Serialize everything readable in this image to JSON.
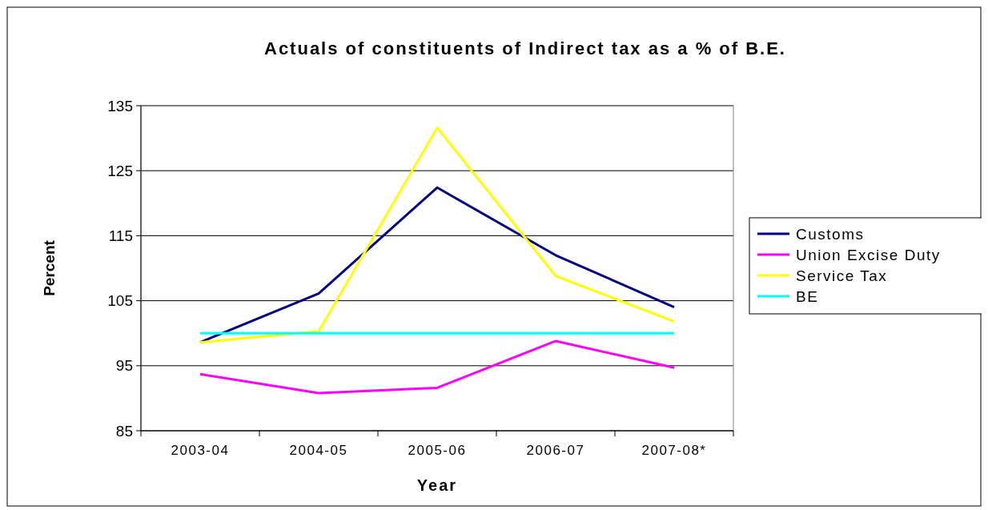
{
  "chart_data": {
    "type": "line",
    "title": "Actuals of constituents of Indirect tax as a % of B.E.",
    "xlabel": "Year",
    "ylabel": "Percent",
    "categories": [
      "2003-04",
      "2004-05",
      "2005-06",
      "2006-07",
      "2007-08*"
    ],
    "series": [
      {
        "name": "Customs",
        "color": "#000080",
        "values": [
          98.6,
          106.1,
          122.4,
          112.0,
          104.0
        ]
      },
      {
        "name": "Union Excise Duty",
        "color": "#ff00ff",
        "values": [
          93.7,
          90.8,
          91.6,
          98.8,
          94.7
        ]
      },
      {
        "name": "Service Tax",
        "color": "#ffff00",
        "values": [
          98.6,
          100.3,
          131.6,
          108.8,
          101.8
        ]
      },
      {
        "name": "BE",
        "color": "#00ffff",
        "values": [
          100,
          100,
          100,
          100,
          100
        ]
      }
    ],
    "ylim": [
      85,
      135
    ],
    "yticks": [
      85,
      95,
      105,
      115,
      125,
      135
    ],
    "grid": "y",
    "legend": "right",
    "marker": "none",
    "line_style": "solid"
  }
}
